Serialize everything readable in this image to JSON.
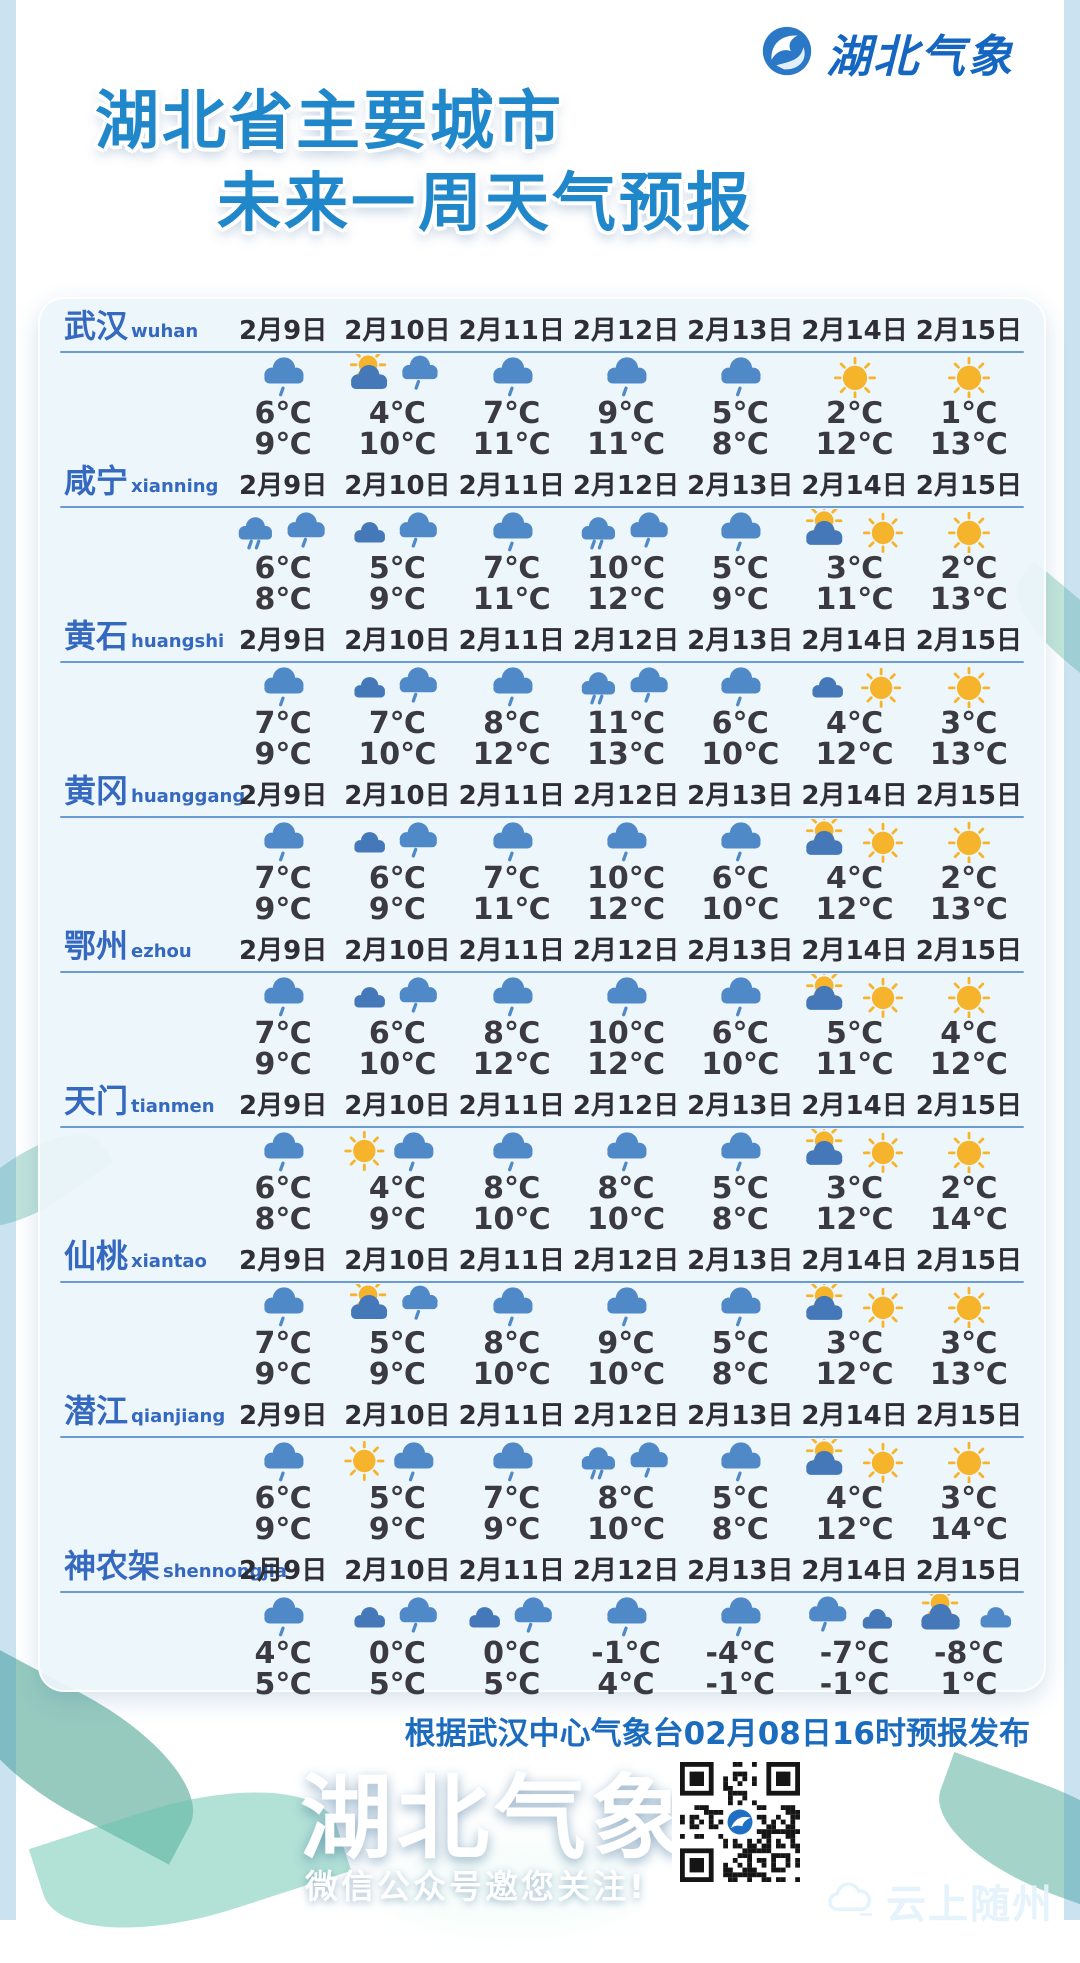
{
  "logo": {
    "text": "湖北气象"
  },
  "title": {
    "line1": "湖北省主要城市",
    "line2": "未来一周天气预报"
  },
  "dates": [
    "2月9日",
    "2月10日",
    "2月11日",
    "2月12日",
    "2月13日",
    "2月14日",
    "2月15日"
  ],
  "cities": [
    {
      "name": "武汉",
      "pinyin": "wuhan",
      "icons": [
        "rain",
        "suncloud-rain",
        "rain",
        "rain",
        "rain",
        "sun",
        "sun"
      ],
      "low": [
        "6℃",
        "4℃",
        "7℃",
        "9℃",
        "5℃",
        "2℃",
        "1℃"
      ],
      "high": [
        "9℃",
        "10℃",
        "11℃",
        "11℃",
        "8℃",
        "12℃",
        "13℃"
      ]
    },
    {
      "name": "咸宁",
      "pinyin": "xianning",
      "icons": [
        "rain-rain",
        "cloud-rain",
        "rain",
        "rain-rain",
        "rain",
        "suncloud-sun",
        "sun"
      ],
      "low": [
        "6℃",
        "5℃",
        "7℃",
        "10℃",
        "5℃",
        "3℃",
        "2℃"
      ],
      "high": [
        "8℃",
        "9℃",
        "11℃",
        "12℃",
        "9℃",
        "11℃",
        "13℃"
      ]
    },
    {
      "name": "黄石",
      "pinyin": "huangshi",
      "icons": [
        "rain",
        "cloud-rain",
        "rain",
        "rain-rain",
        "rain",
        "cloud-sun",
        "sun"
      ],
      "low": [
        "7℃",
        "7℃",
        "8℃",
        "11℃",
        "6℃",
        "4℃",
        "3℃"
      ],
      "high": [
        "9℃",
        "10℃",
        "12℃",
        "13℃",
        "10℃",
        "12℃",
        "13℃"
      ]
    },
    {
      "name": "黄冈",
      "pinyin": "huanggang",
      "icons": [
        "rain",
        "cloud-rain",
        "rain",
        "rain",
        "rain",
        "suncloud-sun",
        "sun"
      ],
      "low": [
        "7℃",
        "6℃",
        "7℃",
        "10℃",
        "6℃",
        "4℃",
        "2℃"
      ],
      "high": [
        "9℃",
        "9℃",
        "11℃",
        "12℃",
        "10℃",
        "12℃",
        "13℃"
      ]
    },
    {
      "name": "鄂州",
      "pinyin": "ezhou",
      "icons": [
        "rain",
        "cloud-rain",
        "rain",
        "rain",
        "rain",
        "suncloud-sun",
        "sun"
      ],
      "low": [
        "7℃",
        "6℃",
        "8℃",
        "10℃",
        "6℃",
        "5℃",
        "4℃"
      ],
      "high": [
        "9℃",
        "10℃",
        "12℃",
        "12℃",
        "10℃",
        "11℃",
        "12℃"
      ]
    },
    {
      "name": "天门",
      "pinyin": "tianmen",
      "icons": [
        "rain",
        "sun-rain",
        "rain",
        "rain",
        "rain",
        "suncloud-sun",
        "sun"
      ],
      "low": [
        "6℃",
        "4℃",
        "8℃",
        "8℃",
        "5℃",
        "3℃",
        "2℃"
      ],
      "high": [
        "8℃",
        "9℃",
        "10℃",
        "10℃",
        "8℃",
        "12℃",
        "14℃"
      ]
    },
    {
      "name": "仙桃",
      "pinyin": "xiantao",
      "icons": [
        "rain",
        "suncloud-rain",
        "rain",
        "rain",
        "rain",
        "suncloud-sun",
        "sun"
      ],
      "low": [
        "7℃",
        "5℃",
        "8℃",
        "9℃",
        "5℃",
        "3℃",
        "3℃"
      ],
      "high": [
        "9℃",
        "9℃",
        "10℃",
        "10℃",
        "8℃",
        "12℃",
        "13℃"
      ]
    },
    {
      "name": "潜江",
      "pinyin": "qianjiang",
      "icons": [
        "rain",
        "sun-rain",
        "rain",
        "rain-rain",
        "rain",
        "suncloud-sun",
        "sun"
      ],
      "low": [
        "6℃",
        "5℃",
        "7℃",
        "8℃",
        "5℃",
        "4℃",
        "3℃"
      ],
      "high": [
        "9℃",
        "9℃",
        "9℃",
        "10℃",
        "8℃",
        "12℃",
        "14℃"
      ]
    },
    {
      "name": "神农架",
      "pinyin": "shennongjia",
      "icons": [
        "rain",
        "cloud-rain",
        "cloud-rain",
        "rain",
        "rain",
        "rain-cloud",
        "suncloud-cloud"
      ],
      "low": [
        "4℃",
        "0℃",
        "0℃",
        "-1℃",
        "-4℃",
        "-7℃",
        "-8℃"
      ],
      "high": [
        "5℃",
        "5℃",
        "5℃",
        "4℃",
        "-1℃",
        "-1℃",
        "1℃"
      ]
    }
  ],
  "footer": {
    "source": "根据武汉中心气象台02月08日16时预报发布",
    "brand": "湖北气象",
    "slogan": "微信公众号邀您关注!",
    "partner": "云上随州"
  },
  "palette": {
    "accent_blue": "#1f87ca",
    "city_blue": "#3568bf",
    "date_color": "#2e2e34",
    "temp_color": "#3a3a40",
    "sun": "#f6b42c",
    "cloud": "#4f89c8",
    "cloud_dark": "#4478b8",
    "source_blue": "#1b6cbe"
  }
}
